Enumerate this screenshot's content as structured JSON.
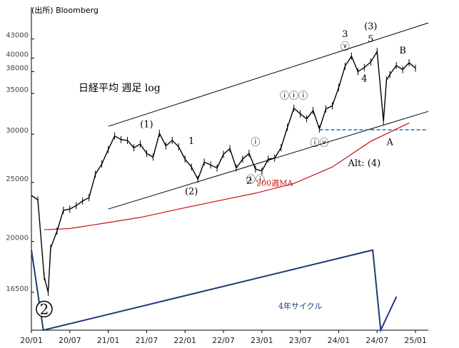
{
  "source": "(出所) Bloomberg",
  "chart_data": {
    "type": "line",
    "title": "日経平均 週足 log",
    "y_scale": "log",
    "ylim": [
      14300,
      48500
    ],
    "xlim": [
      "2020-01",
      "2025-03"
    ],
    "y_ticks": [
      43000,
      40000,
      38000,
      35000,
      30000,
      25000,
      20000,
      16500
    ],
    "x_ticks": [
      {
        "label": "20/01",
        "date": "2020-01"
      },
      {
        "label": "20/07",
        "date": "2020-07"
      },
      {
        "label": "21/01",
        "date": "2021-01"
      },
      {
        "label": "21/07",
        "date": "2021-07"
      },
      {
        "label": "22/01",
        "date": "2022-01"
      },
      {
        "label": "22/07",
        "date": "2022-07"
      },
      {
        "label": "23/01",
        "date": "2023-01"
      },
      {
        "label": "23/07",
        "date": "2023-07"
      },
      {
        "label": "24/01",
        "date": "2024-01"
      },
      {
        "label": "24/07",
        "date": "2024-07"
      },
      {
        "label": "25/01",
        "date": "2025-01"
      }
    ],
    "series": [
      {
        "name": "",
        "style": "weekly-bars",
        "color": "#000000",
        "points": [
          [
            "2020-01",
            23800
          ],
          [
            "2020-02",
            23400
          ],
          [
            "2020-03",
            17500
          ],
          [
            "2020-03-20",
            16500
          ],
          [
            "2020-04",
            19500
          ],
          [
            "2020-05",
            20800
          ],
          [
            "2020-06",
            22500
          ],
          [
            "2020-07",
            22600
          ],
          [
            "2020-08",
            22900
          ],
          [
            "2020-09",
            23300
          ],
          [
            "2020-10",
            23600
          ],
          [
            "2020-11",
            25800
          ],
          [
            "2020-12",
            26800
          ],
          [
            "2021-01",
            28300
          ],
          [
            "2021-02",
            29800
          ],
          [
            "2021-03",
            29400
          ],
          [
            "2021-04",
            29300
          ],
          [
            "2021-05",
            28500
          ],
          [
            "2021-06",
            28900
          ],
          [
            "2021-07",
            27900
          ],
          [
            "2021-08",
            27500
          ],
          [
            "2021-09",
            30100
          ],
          [
            "2021-10",
            28700
          ],
          [
            "2021-11",
            29300
          ],
          [
            "2021-12",
            28600
          ],
          [
            "2022-01",
            27300
          ],
          [
            "2022-02",
            26500
          ],
          [
            "2022-03",
            25300
          ],
          [
            "2022-04",
            27000
          ],
          [
            "2022-05",
            26700
          ],
          [
            "2022-06",
            26400
          ],
          [
            "2022-07",
            27800
          ],
          [
            "2022-08",
            28400
          ],
          [
            "2022-09",
            26400
          ],
          [
            "2022-10",
            27300
          ],
          [
            "2022-11",
            27900
          ],
          [
            "2022-12",
            26300
          ],
          [
            "2023-01",
            26100
          ],
          [
            "2023-02",
            27300
          ],
          [
            "2023-03",
            27400
          ],
          [
            "2023-04",
            28500
          ],
          [
            "2023-05",
            30800
          ],
          [
            "2023-06",
            33100
          ],
          [
            "2023-07",
            32400
          ],
          [
            "2023-08",
            31800
          ],
          [
            "2023-09",
            32800
          ],
          [
            "2023-10",
            30600
          ],
          [
            "2023-11",
            33000
          ],
          [
            "2023-12",
            33400
          ],
          [
            "2024-01",
            35800
          ],
          [
            "2024-02",
            38800
          ],
          [
            "2024-03",
            40300
          ],
          [
            "2024-04",
            38000
          ],
          [
            "2024-05",
            38600
          ],
          [
            "2024-06",
            39400
          ],
          [
            "2024-07",
            41000
          ],
          [
            "2024-08",
            31500
          ],
          [
            "2024-08-15",
            36800
          ],
          [
            "2024-09",
            37600
          ],
          [
            "2024-10",
            38900
          ],
          [
            "2024-11",
            38300
          ],
          [
            "2024-12",
            39300
          ],
          [
            "2025-01",
            38500
          ]
        ]
      },
      {
        "name": "200週MA",
        "color": "#cc1111",
        "points": [
          [
            "2020-03",
            20900
          ],
          [
            "2020-07",
            21000
          ],
          [
            "2020-12",
            21400
          ],
          [
            "2021-06",
            21900
          ],
          [
            "2021-12",
            22600
          ],
          [
            "2022-06",
            23300
          ],
          [
            "2022-12",
            24000
          ],
          [
            "2023-06",
            24900
          ],
          [
            "2023-12",
            26500
          ],
          [
            "2024-06",
            29200
          ],
          [
            "2024-12",
            31300
          ]
        ]
      },
      {
        "name": "4年サイクル",
        "color": "#1f3a7a",
        "style": "cycle-panel",
        "points": [
          [
            0,
            1.0
          ],
          [
            0.03,
            0.0
          ],
          [
            0.86,
            1.0
          ],
          [
            0.88,
            0.0
          ],
          [
            0.92,
            0.42
          ]
        ]
      }
    ],
    "channel_lines": [
      {
        "points": [
          [
            "2021-01",
            30900
          ],
          [
            "2025-03",
            45700
          ]
        ]
      },
      {
        "points": [
          [
            "2021-01",
            22600
          ],
          [
            "2025-03",
            32700
          ]
        ]
      }
    ],
    "reference_line": {
      "value": 30500,
      "from": "2023-10",
      "to": "2025-03",
      "color": "#1e6fb8"
    },
    "annotations": [
      {
        "text": "(1)",
        "at": [
          "2021-07",
          30800
        ]
      },
      {
        "text": "1",
        "at": [
          "2022-02",
          28900
        ]
      },
      {
        "text": "(2)",
        "at": [
          "2022-02",
          23900
        ]
      },
      {
        "text": "2",
        "at": [
          "2022-11",
          24900
        ]
      },
      {
        "text": "ⓘ",
        "at": [
          "2022-12",
          28800
        ]
      },
      {
        "text": "ⓘⓘ",
        "at": [
          "2022-12",
          25000
        ]
      },
      {
        "text": "ⓘⓘⓘ",
        "at": [
          "2023-06",
          34300
        ]
      },
      {
        "text": "ⓘⓥ",
        "at": [
          "2023-10",
          28700
        ]
      },
      {
        "text": "ⓥ",
        "at": [
          "2024-02",
          41300
        ]
      },
      {
        "text": "3",
        "at": [
          "2024-02",
          43300
        ]
      },
      {
        "text": "(3)",
        "at": [
          "2024-06",
          44600
        ]
      },
      {
        "text": "5",
        "at": [
          "2024-06",
          42500
        ]
      },
      {
        "text": "4",
        "at": [
          "2024-05",
          36600
        ]
      },
      {
        "text": "B",
        "at": [
          "2024-11",
          40700
        ]
      },
      {
        "text": "A",
        "at": [
          "2024-09",
          28800
        ]
      },
      {
        "text": "Alt: (4)",
        "at": [
          "2024-05",
          26600
        ]
      },
      {
        "text": "200週MA",
        "at": [
          "2023-03",
          24700
        ]
      },
      {
        "text": "4年サイクル",
        "at": [
          "2023-07",
          15500
        ]
      },
      {
        "text": "2",
        "at": [
          "2020-03",
          15200
        ],
        "circled": true
      }
    ]
  }
}
